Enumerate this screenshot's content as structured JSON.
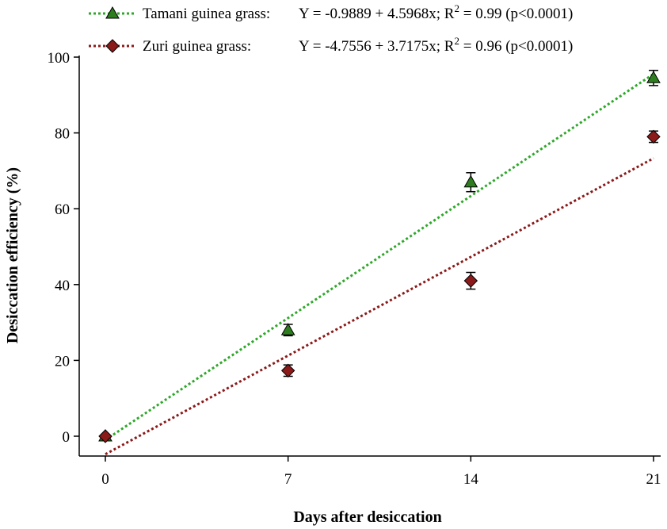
{
  "chart_data": {
    "type": "scatter",
    "title": "",
    "xlabel": "Days after desiccation",
    "ylabel": "Desiccation efficiency  (%)",
    "xlim": [
      -1,
      21
    ],
    "ylim": [
      -5,
      100
    ],
    "xticks": [
      0,
      7,
      14,
      21
    ],
    "yticks": [
      0,
      20,
      40,
      60,
      80,
      100
    ],
    "grid": false,
    "legend_position": "top",
    "series": [
      {
        "name": "Tamani guinea grass",
        "legend_label": "Tamani guinea grass:",
        "equation": "Y = -0.9889 + 4.5968x; R",
        "r2_sup": "2",
        "r2_tail": " = 0.99 (p<0.0001)",
        "marker": "triangle",
        "color": "#2e7d1e",
        "line_color": "#2fa82a",
        "x": [
          0,
          7,
          14,
          21
        ],
        "y": [
          0,
          28,
          67,
          94.5
        ],
        "error": [
          0,
          1.5,
          2.5,
          2
        ],
        "intercept": -0.9889,
        "slope": 4.5968
      },
      {
        "name": "Zuri guinea grass",
        "legend_label": "Zuri guinea grass:",
        "equation": "Y = -4.7556 + 3.7175x; R",
        "r2_sup": "2",
        "r2_tail": " = 0.96 (p<0.0001)",
        "marker": "diamond",
        "color": "#8b1a1a",
        "line_color": "#8b1a1a",
        "x": [
          0,
          7,
          14,
          21
        ],
        "y": [
          0,
          17.3,
          41,
          79
        ],
        "error": [
          0,
          1.5,
          2.2,
          1.5
        ],
        "intercept": -4.7556,
        "slope": 3.7175
      }
    ]
  }
}
